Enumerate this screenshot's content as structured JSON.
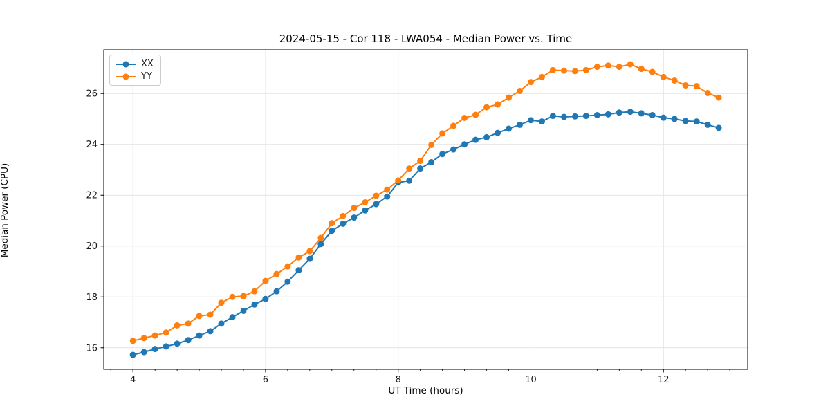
{
  "chart_data": {
    "type": "line",
    "title": "2024-05-15 - Cor 118 - LWA054 - Median Power vs. Time",
    "xlabel": "UT Time (hours)",
    "ylabel": "Median Power (CPU)",
    "xlim": [
      3.56,
      13.27
    ],
    "ylim": [
      15.15,
      27.72
    ],
    "x_ticks": [
      4,
      6,
      8,
      10,
      12
    ],
    "y_ticks": [
      16,
      18,
      20,
      22,
      24,
      26
    ],
    "x_minor_step": 0.33333,
    "grid": true,
    "legend_position": "upper-left",
    "marker": "circle",
    "x": [
      4.0,
      4.167,
      4.333,
      4.5,
      4.667,
      4.833,
      5.0,
      5.167,
      5.333,
      5.5,
      5.667,
      5.833,
      6.0,
      6.167,
      6.333,
      6.5,
      6.667,
      6.833,
      7.0,
      7.167,
      7.333,
      7.5,
      7.667,
      7.833,
      8.0,
      8.167,
      8.333,
      8.5,
      8.667,
      8.833,
      9.0,
      9.167,
      9.333,
      9.5,
      9.667,
      9.833,
      10.0,
      10.167,
      10.333,
      10.5,
      10.667,
      10.833,
      11.0,
      11.167,
      11.333,
      11.5,
      11.667,
      11.833,
      12.0,
      12.167,
      12.333,
      12.5,
      12.667,
      12.833
    ],
    "series": [
      {
        "name": "XX",
        "color": "#1f77b4",
        "values": [
          15.72,
          15.83,
          15.95,
          16.05,
          16.16,
          16.3,
          16.48,
          16.65,
          16.95,
          17.2,
          17.45,
          17.7,
          17.92,
          18.22,
          18.6,
          19.05,
          19.5,
          20.08,
          20.6,
          20.88,
          21.12,
          21.4,
          21.65,
          21.95,
          22.5,
          22.57,
          23.05,
          23.3,
          23.62,
          23.8,
          24.0,
          24.18,
          24.28,
          24.45,
          24.62,
          24.77,
          24.95,
          24.9,
          25.12,
          25.08,
          25.1,
          25.12,
          25.15,
          25.18,
          25.25,
          25.28,
          25.22,
          25.15,
          25.05,
          25.0,
          24.92,
          24.9,
          24.77,
          24.65
        ]
      },
      {
        "name": "YY",
        "color": "#ff7f0e",
        "values": [
          16.27,
          16.38,
          16.48,
          16.6,
          16.88,
          16.95,
          17.25,
          17.3,
          17.77,
          18.0,
          18.03,
          18.22,
          18.63,
          18.9,
          19.2,
          19.55,
          19.8,
          20.32,
          20.9,
          21.18,
          21.5,
          21.72,
          21.98,
          22.22,
          22.58,
          23.05,
          23.35,
          23.98,
          24.43,
          24.73,
          25.04,
          25.16,
          25.46,
          25.57,
          25.84,
          26.1,
          26.45,
          26.65,
          26.92,
          26.9,
          26.88,
          26.92,
          27.05,
          27.1,
          27.05,
          27.15,
          26.97,
          26.85,
          26.65,
          26.51,
          26.32,
          26.29,
          26.02,
          25.84
        ]
      }
    ]
  },
  "style_colors": {
    "grid": "#e3e3e3",
    "spine": "#000000",
    "tick_text": "#1a1a1a"
  }
}
